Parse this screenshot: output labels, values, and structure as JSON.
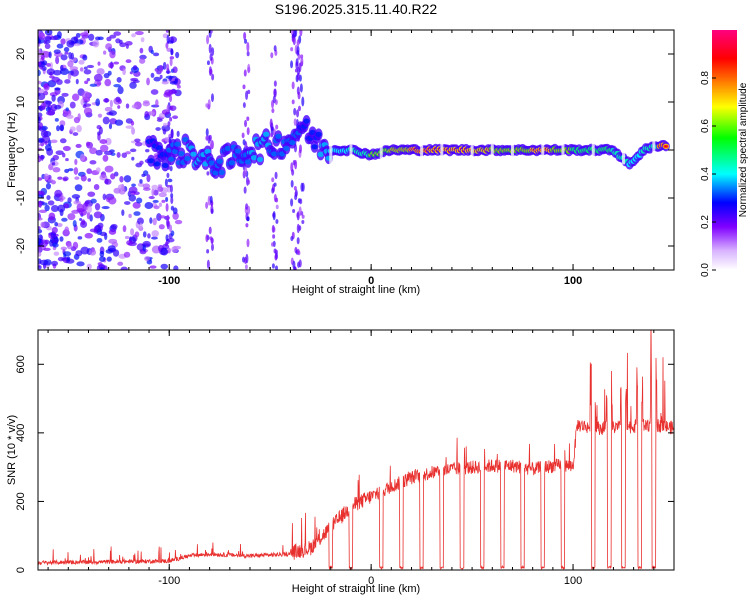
{
  "title": "S196.2025.315.11.40.R22",
  "chart_data": [
    {
      "type": "heatmap",
      "xlabel": "Height of straight line (km)",
      "ylabel": "Frequency (Hz)",
      "xlim": [
        -165,
        150
      ],
      "ylim": [
        -25,
        25
      ],
      "xticks": [
        -100,
        0,
        100
      ],
      "yticks": [
        -20,
        -10,
        0,
        10,
        20
      ],
      "colorbar": {
        "label": "Normalized spectral amplitude",
        "range": [
          0,
          1
        ],
        "ticks": [
          "0.0",
          "0.2",
          "0.4",
          "0.6",
          "0.8"
        ],
        "colors": [
          "#ffffff",
          "#8000ff",
          "#0000ff",
          "#00ffff",
          "#00ff00",
          "#ffff00",
          "#ff8000",
          "#ff0000",
          "#ff0080"
        ]
      },
      "ridge": {
        "segments": [
          {
            "x": -110,
            "freq": 0,
            "amp": 0.35
          },
          {
            "x": -100,
            "freq": -1,
            "amp": 0.4
          },
          {
            "x": -90,
            "freq": 0,
            "amp": 0.45
          },
          {
            "x": -80,
            "freq": -3,
            "amp": 0.4
          },
          {
            "x": -70,
            "freq": -2,
            "amp": 0.4
          },
          {
            "x": -60,
            "freq": 0,
            "amp": 0.45
          },
          {
            "x": -50,
            "freq": 1,
            "amp": 0.4
          },
          {
            "x": -40,
            "freq": 2,
            "amp": 0.4
          },
          {
            "x": -35,
            "freq": 5,
            "amp": 0.35
          },
          {
            "x": -25,
            "freq": 1,
            "amp": 0.45
          },
          {
            "x": -20,
            "freq": 0,
            "amp": 0.5
          },
          {
            "x": -10,
            "freq": 0,
            "amp": 0.55
          },
          {
            "x": 0,
            "freq": -1,
            "amp": 0.65
          },
          {
            "x": 10,
            "freq": 0,
            "amp": 0.75
          },
          {
            "x": 20,
            "freq": 0,
            "amp": 0.9
          },
          {
            "x": 30,
            "freq": 0,
            "amp": 0.85
          },
          {
            "x": 40,
            "freq": 0,
            "amp": 0.85
          },
          {
            "x": 50,
            "freq": 0,
            "amp": 0.8
          },
          {
            "x": 60,
            "freq": 0,
            "amp": 0.7
          },
          {
            "x": 70,
            "freq": 0,
            "amp": 0.7
          },
          {
            "x": 80,
            "freq": 0,
            "amp": 0.85
          },
          {
            "x": 90,
            "freq": 0,
            "amp": 0.7
          },
          {
            "x": 100,
            "freq": 0,
            "amp": 0.6
          },
          {
            "x": 110,
            "freq": 0,
            "amp": 0.6
          },
          {
            "x": 120,
            "freq": 0,
            "amp": 0.55
          },
          {
            "x": 128,
            "freq": -3,
            "amp": 0.5
          },
          {
            "x": 135,
            "freq": 0,
            "amp": 0.55
          },
          {
            "x": 143,
            "freq": 1,
            "amp": 0.9
          }
        ],
        "gaps_km": [
          -20,
          -10,
          5,
          25,
          35,
          50,
          60,
          70,
          85,
          95,
          110,
          125,
          140
        ]
      }
    },
    {
      "type": "line",
      "xlabel": "Height of straight line (km)",
      "ylabel": "SNR (10 * v/v)",
      "xlim": [
        -165,
        150
      ],
      "ylim": [
        0,
        700
      ],
      "xticks": [
        -100,
        0,
        100
      ],
      "yticks": [
        0,
        200,
        400,
        600
      ],
      "color": "#e8302e",
      "baseline_trend": [
        [
          -165,
          20
        ],
        [
          -100,
          25
        ],
        [
          -90,
          40
        ],
        [
          -80,
          45
        ],
        [
          -60,
          40
        ],
        [
          -40,
          45
        ],
        [
          -30,
          60
        ],
        [
          -20,
          120
        ],
        [
          -10,
          180
        ],
        [
          0,
          210
        ],
        [
          10,
          240
        ],
        [
          20,
          265
        ],
        [
          30,
          280
        ],
        [
          40,
          290
        ],
        [
          50,
          295
        ],
        [
          60,
          300
        ],
        [
          70,
          300
        ],
        [
          80,
          290
        ],
        [
          90,
          300
        ],
        [
          100,
          300
        ],
        [
          102,
          420
        ],
        [
          110,
          410
        ],
        [
          120,
          410
        ],
        [
          130,
          415
        ],
        [
          140,
          420
        ],
        [
          150,
          410
        ]
      ],
      "dropouts_km": [
        -20,
        -10,
        5,
        15,
        25,
        35,
        45,
        55,
        65,
        75,
        85,
        95,
        110,
        118,
        125,
        133,
        140
      ]
    }
  ]
}
